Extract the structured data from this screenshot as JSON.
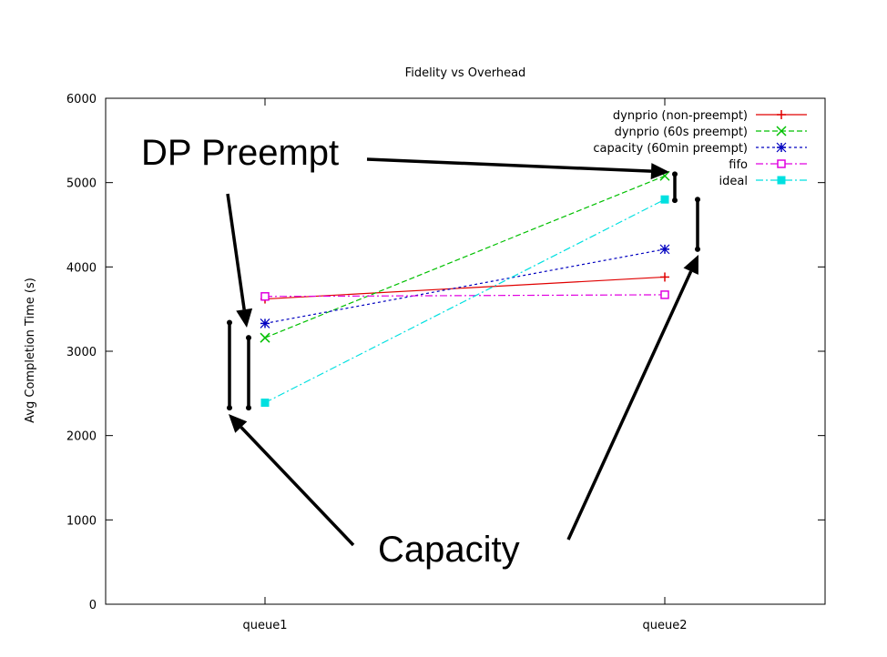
{
  "chart_data": {
    "type": "line",
    "title": "Fidelity vs Overhead",
    "xlabel": "",
    "ylabel": "Avg Completion Time (s)",
    "categories": [
      "queue1",
      "queue2"
    ],
    "ylim": [
      0,
      6000
    ],
    "yticks": [
      0,
      1000,
      2000,
      3000,
      4000,
      5000,
      6000
    ],
    "grid": false,
    "legend_position": "top-right",
    "series": [
      {
        "name": "dynprio (non-preempt)",
        "values": [
          3620,
          3880
        ],
        "color": "#e00000",
        "marker": "plus",
        "dash": "solid"
      },
      {
        "name": "dynprio (60s preempt)",
        "values": [
          3160,
          5080
        ],
        "color": "#00c000",
        "marker": "x",
        "dash": "dashed"
      },
      {
        "name": "capacity (60min preempt)",
        "values": [
          3330,
          4210
        ],
        "color": "#0000c0",
        "marker": "star",
        "dash": "dotted"
      },
      {
        "name": "fifo",
        "values": [
          3650,
          3670
        ],
        "color": "#e000e0",
        "marker": "square",
        "dash": "dashdot"
      },
      {
        "name": "ideal",
        "values": [
          2390,
          4800
        ],
        "color": "#00e0e0",
        "marker": "filled-square",
        "dash": "dashdot"
      }
    ],
    "annotations": [
      {
        "text": "DP Preempt"
      },
      {
        "text": "Capacity"
      }
    ],
    "range_bars": [
      {
        "category": "queue1",
        "from": 2330,
        "to": 3340
      },
      {
        "category": "queue1",
        "from": 2330,
        "to": 3160
      },
      {
        "category": "queue2",
        "from": 4790,
        "to": 5100
      },
      {
        "category": "queue2",
        "from": 4210,
        "to": 4800
      }
    ]
  }
}
